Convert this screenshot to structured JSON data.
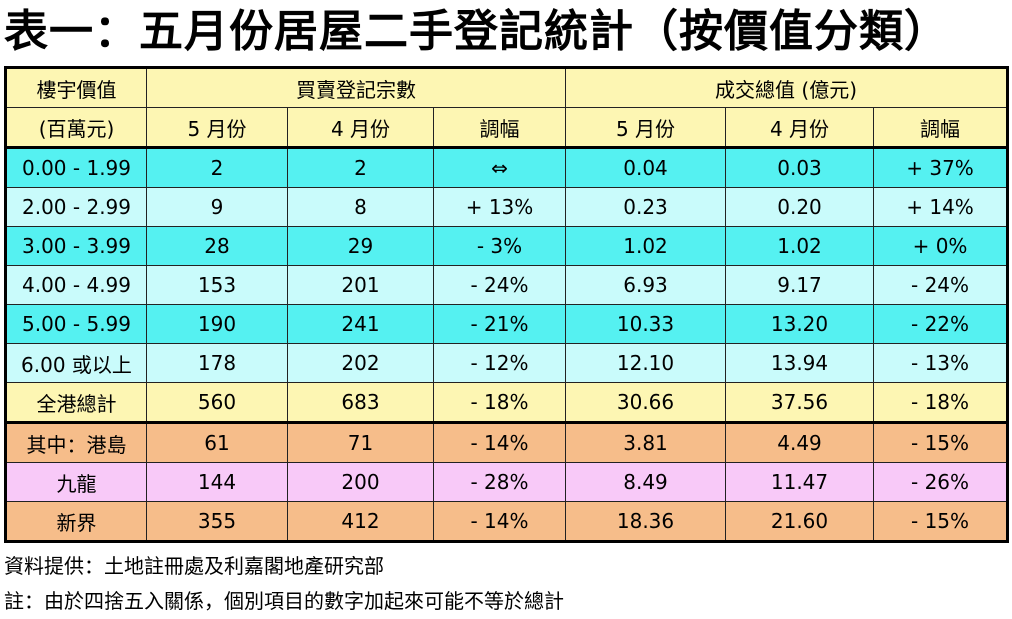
{
  "title": "表一：五月份居屋二手登記統計（按價值分類）",
  "headers": {
    "value_top": "樓宇價值",
    "value_unit": "(百萬元)",
    "deals_group": "買賣登記宗數",
    "amount_group": "成交總值 (億元)",
    "may": "5 月份",
    "apr": "4 月份",
    "change": "調幅"
  },
  "rows": [
    {
      "range": "0.00 - 1.99",
      "deals_may": "2",
      "deals_apr": "2",
      "deals_chg": "⇔",
      "amt_may": "0.04",
      "amt_apr": "0.03",
      "amt_chg": "+ 37%",
      "color": "#55f1f1"
    },
    {
      "range": "2.00 - 2.99",
      "deals_may": "9",
      "deals_apr": "8",
      "deals_chg": "+ 13%",
      "amt_may": "0.23",
      "amt_apr": "0.20",
      "amt_chg": "+ 14%",
      "color": "#c9fbfb"
    },
    {
      "range": "3.00 - 3.99",
      "deals_may": "28",
      "deals_apr": "29",
      "deals_chg": "- 3%",
      "amt_may": "1.02",
      "amt_apr": "1.02",
      "amt_chg": "+ 0%",
      "color": "#55f1f1"
    },
    {
      "range": "4.00 - 4.99",
      "deals_may": "153",
      "deals_apr": "201",
      "deals_chg": "- 24%",
      "amt_may": "6.93",
      "amt_apr": "9.17",
      "amt_chg": "- 24%",
      "color": "#c9fbfb"
    },
    {
      "range": "5.00 - 5.99",
      "deals_may": "190",
      "deals_apr": "241",
      "deals_chg": "- 21%",
      "amt_may": "10.33",
      "amt_apr": "13.20",
      "amt_chg": "- 22%",
      "color": "#55f1f1"
    },
    {
      "range": "6.00 或以上",
      "deals_may": "178",
      "deals_apr": "202",
      "deals_chg": "- 12%",
      "amt_may": "12.10",
      "amt_apr": "13.94",
      "amt_chg": "- 13%",
      "color": "#c9fbfb"
    },
    {
      "range": "全港總計",
      "deals_may": "560",
      "deals_apr": "683",
      "deals_chg": "- 18%",
      "amt_may": "30.66",
      "amt_apr": "37.56",
      "amt_chg": "- 18%",
      "color": "#fdf6b3"
    },
    {
      "range": "其中：港島",
      "deals_may": "61",
      "deals_apr": "71",
      "deals_chg": "- 14%",
      "amt_may": "3.81",
      "amt_apr": "4.49",
      "amt_chg": "- 15%",
      "color": "#f6bd8a"
    },
    {
      "range": "九龍",
      "deals_may": "144",
      "deals_apr": "200",
      "deals_chg": "- 28%",
      "amt_may": "8.49",
      "amt_apr": "11.47",
      "amt_chg": "- 26%",
      "color": "#f8c9f8"
    },
    {
      "range": "新界",
      "deals_may": "355",
      "deals_apr": "412",
      "deals_chg": "- 14%",
      "amt_may": "18.36",
      "amt_apr": "21.60",
      "amt_chg": "- 15%",
      "color": "#f6bd8a"
    }
  ],
  "notes": {
    "source": "資料提供：土地註冊處及利嘉閣地產研究部",
    "rounding": "註：由於四捨五入關係，個別項目的數字加起來可能不等於總計"
  }
}
